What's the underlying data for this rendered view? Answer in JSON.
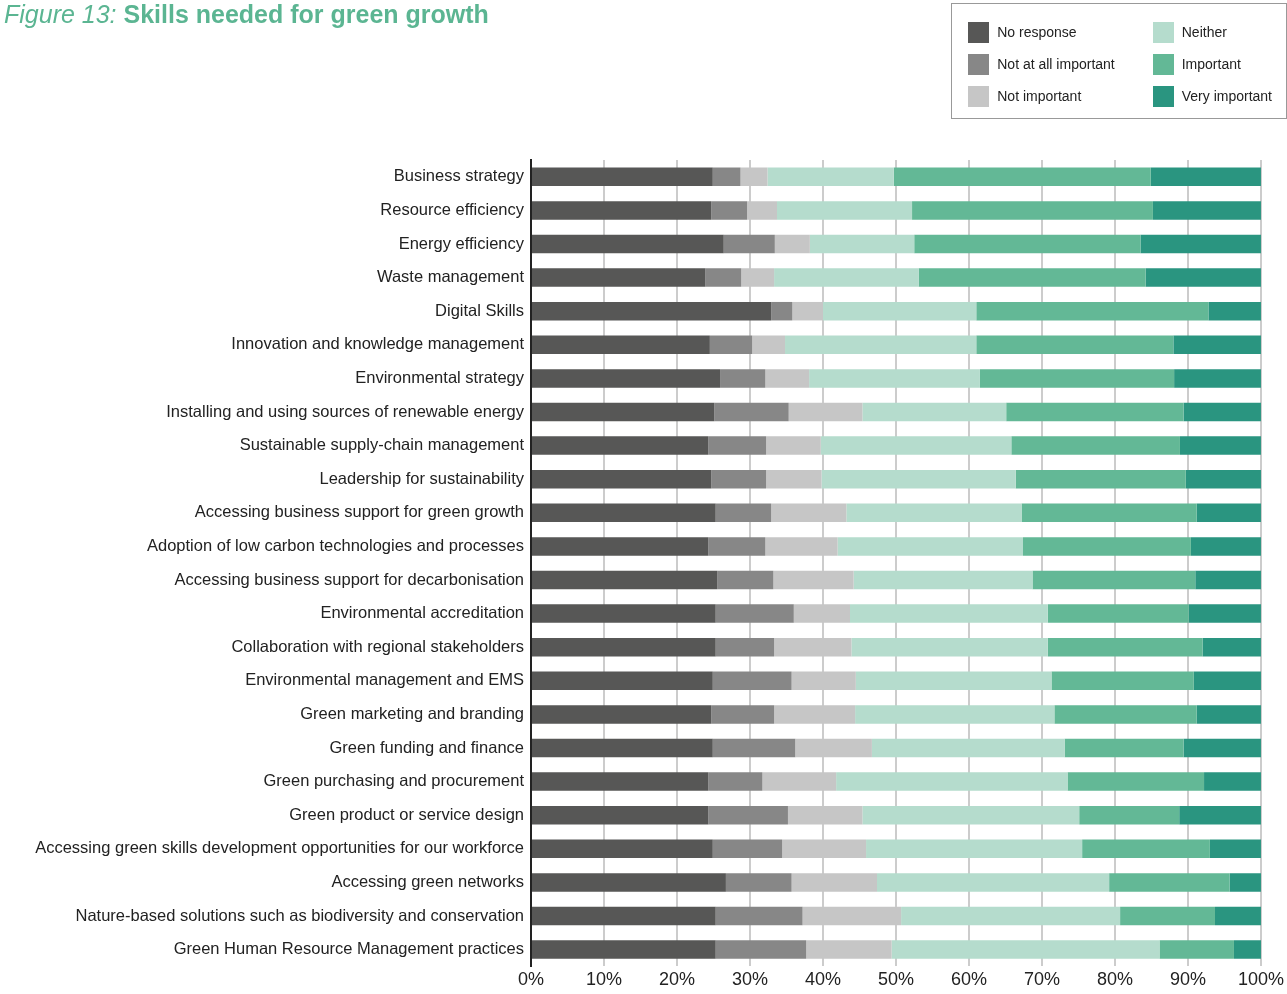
{
  "chart_data": {
    "type": "bar",
    "orientation": "horizontal",
    "stacked": true,
    "title": "Figure 13: Skills needed for green growth",
    "categories": [
      "Business strategy",
      "Resource efficiency",
      "Energy efficiency",
      "Waste management",
      "Digital Skills",
      "Innovation and knowledge management",
      "Environmental strategy",
      "Installing and using sources of renewable energy",
      "Sustainable supply-chain management",
      "Leadership for sustainability",
      "Accessing business support for green growth",
      "Adoption of low carbon technologies and processes",
      "Accessing business support for decarbonisation",
      "Environmental accreditation",
      "Collaboration with regional stakeholders",
      "Environmental management and EMS",
      "Green marketing and branding",
      "Green funding and finance",
      "Green purchasing and procurement",
      "Green product or service design",
      "Accessing green skills development opportunities for our workforce",
      "Accessing green networks",
      "Nature-based solutions such as biodiversity and conservation",
      "Green Human Resource Management practices"
    ],
    "series": [
      {
        "name": "No response",
        "color": "#575756",
        "values": [
          24.9,
          24.7,
          26.4,
          23.9,
          32.9,
          24.5,
          25.9,
          25.1,
          24.3,
          24.7,
          25.3,
          24.3,
          25.5,
          25.3,
          25.3,
          24.9,
          24.7,
          24.9,
          24.3,
          24.3,
          24.9,
          26.7,
          25.3,
          25.3
        ]
      },
      {
        "name": "Not at all important",
        "color": "#878787",
        "values": [
          3.8,
          4.9,
          7.0,
          4.9,
          2.9,
          5.8,
          6.2,
          10.2,
          7.9,
          7.5,
          7.6,
          7.8,
          7.7,
          10.7,
          8.0,
          10.8,
          8.6,
          11.3,
          7.4,
          10.9,
          9.5,
          9.0,
          11.9,
          12.4
        ]
      },
      {
        "name": "Not important",
        "color": "#c6c6c6",
        "values": [
          3.7,
          4.1,
          4.8,
          4.5,
          4.2,
          4.5,
          6.0,
          10.1,
          7.5,
          7.6,
          10.3,
          9.9,
          11.0,
          7.7,
          10.6,
          8.8,
          11.1,
          10.5,
          10.1,
          10.2,
          11.5,
          11.7,
          13.5,
          11.7
        ]
      },
      {
        "name": "Neither",
        "color": "#b5dccd",
        "values": [
          17.3,
          18.5,
          14.3,
          19.8,
          21.0,
          26.2,
          23.4,
          19.7,
          26.1,
          26.6,
          24.0,
          25.4,
          24.5,
          27.1,
          26.9,
          26.8,
          27.3,
          26.4,
          31.7,
          29.7,
          29.6,
          31.8,
          30.0,
          36.7
        ]
      },
      {
        "name": "Important",
        "color": "#63b896",
        "values": [
          35.2,
          33.0,
          31.0,
          31.1,
          31.8,
          27.0,
          26.6,
          24.3,
          23.1,
          23.3,
          24.0,
          23.0,
          22.3,
          19.3,
          21.2,
          19.5,
          19.5,
          16.3,
          18.7,
          13.7,
          17.5,
          16.5,
          13.0,
          10.2
        ]
      },
      {
        "name": "Very important",
        "color": "#2a9580",
        "values": [
          15.1,
          14.8,
          16.5,
          15.8,
          7.2,
          12.0,
          11.9,
          10.6,
          11.1,
          10.3,
          8.8,
          9.6,
          9.0,
          9.9,
          8.0,
          9.2,
          8.8,
          10.6,
          7.8,
          11.2,
          7.0,
          4.3,
          6.3,
          3.7
        ]
      }
    ],
    "xlim": [
      0,
      100
    ],
    "xticks": [
      {
        "value": 0,
        "label": "0%"
      },
      {
        "value": 10,
        "label": "10%"
      },
      {
        "value": 20,
        "label": "20%"
      },
      {
        "value": 30,
        "label": "30%"
      },
      {
        "value": 40,
        "label": "40%"
      },
      {
        "value": 50,
        "label": "50%"
      },
      {
        "value": 60,
        "label": "60%"
      },
      {
        "value": 70,
        "label": "70%"
      },
      {
        "value": 80,
        "label": "80%"
      },
      {
        "value": 90,
        "label": "90%"
      },
      {
        "value": 100,
        "label": "100%"
      }
    ],
    "grid": "x",
    "legend": "top right"
  }
}
